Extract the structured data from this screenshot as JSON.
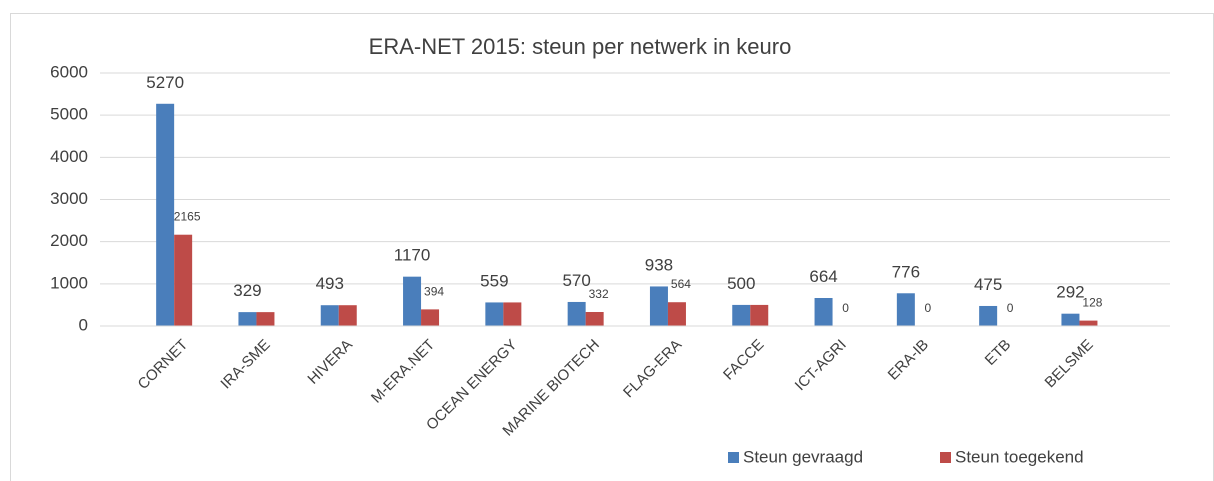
{
  "chart_data": {
    "type": "bar",
    "title": "ERA-NET 2015: steun per netwerk in keuro",
    "categories": [
      "CORNET",
      "IRA-SME",
      "HIVERA",
      "M-ERA.NET",
      "OCEAN ENERGY",
      "MARINE BIOTECH",
      "FLAG-ERA",
      "FACCE",
      "ICT-AGRI",
      "ERA-IB",
      "ETB",
      "BELSME"
    ],
    "series": [
      {
        "name": "Steun gevraagd",
        "color": "#4a7ebb",
        "values": [
          5270,
          329,
          493,
          1170,
          559,
          570,
          938,
          500,
          664,
          776,
          475,
          292
        ]
      },
      {
        "name": "Steun toegekend",
        "color": "#be4b48",
        "values": [
          2165,
          329,
          493,
          394,
          559,
          332,
          564,
          500,
          0,
          0,
          0,
          128
        ],
        "value_labels": [
          "2165",
          null,
          null,
          "394",
          null,
          "332",
          "564",
          null,
          "0",
          "0",
          "0",
          "128"
        ]
      }
    ],
    "ylim": [
      0,
      6000
    ],
    "yticks": [
      0,
      1000,
      2000,
      3000,
      4000,
      5000,
      6000
    ],
    "grid": true,
    "legend": "bottom-right"
  }
}
